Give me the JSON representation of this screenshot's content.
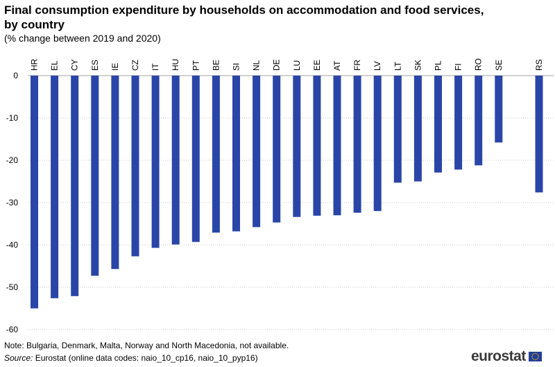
{
  "header": {
    "title": "Final consumption expenditure by households on accommodation and food services, by country",
    "subtitle": "(% change between 2019 and 2020)"
  },
  "footer": {
    "note": "Note: Bulgaria, Denmark, Malta, Norway and North Macedonia, not available.",
    "source_label": "Source:",
    "source_text": " Eurostat (online data codes: naio_10_cp16, naio_10_pyp16)",
    "logo_text": "eurostat"
  },
  "colors": {
    "bar": "#2a45a8",
    "flag": "#233e97",
    "flag_stars": "#ffd200"
  },
  "chart_data": {
    "type": "bar",
    "title": "Final consumption expenditure by households on accommodation and food services, by country",
    "subtitle": "(% change between 2019 and 2020)",
    "xlabel": "",
    "ylabel": "",
    "ylim": [
      -60,
      0
    ],
    "yticks": [
      0,
      -10,
      -20,
      -30,
      -40,
      -50,
      -60
    ],
    "grid": true,
    "categories": [
      "HR",
      "EL",
      "CY",
      "ES",
      "IE",
      "CZ",
      "IT",
      "HU",
      "PT",
      "BE",
      "SI",
      "NL",
      "DE",
      "LU",
      "EE",
      "AT",
      "FR",
      "LV",
      "LT",
      "SK",
      "PL",
      "FI",
      "RO",
      "SE",
      "",
      "RS"
    ],
    "values": [
      -55.0,
      -52.6,
      -52.1,
      -47.3,
      -45.7,
      -42.7,
      -40.7,
      -39.9,
      -39.3,
      -37.1,
      -36.8,
      -35.8,
      -34.7,
      -33.4,
      -33.1,
      -33.0,
      -32.4,
      -32.0,
      -25.3,
      -25.0,
      -22.9,
      -22.2,
      -21.2,
      -15.8,
      null,
      -27.6
    ]
  }
}
